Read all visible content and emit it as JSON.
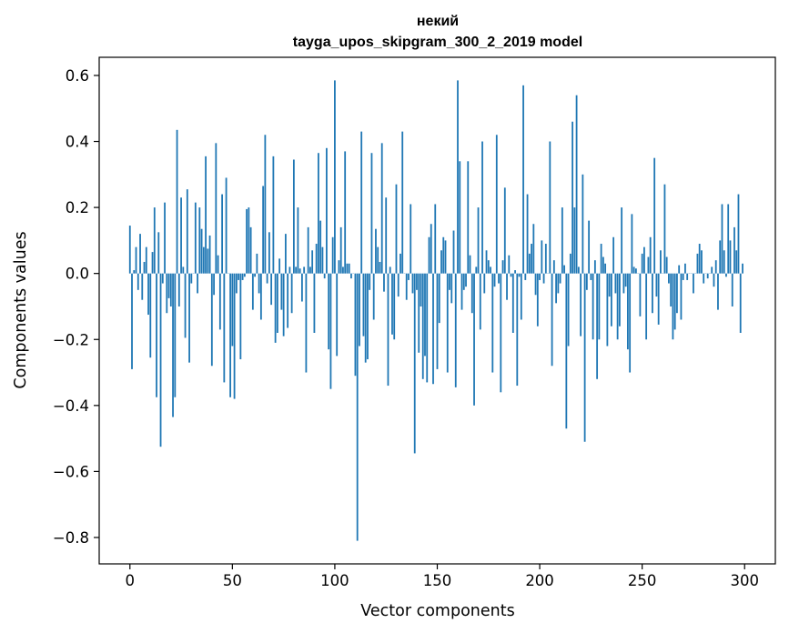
{
  "chart_data": {
    "type": "bar",
    "title_line1": "некий",
    "title_line2": "tayga_upos_skipgram_300_2_2019 model",
    "xlabel": "Vector components",
    "ylabel": "Components values",
    "xlim": [
      -15,
      315
    ],
    "ylim": [
      -0.88,
      0.655
    ],
    "xticks": [
      0,
      50,
      100,
      150,
      200,
      250,
      300
    ],
    "xtick_labels": [
      "0",
      "50",
      "100",
      "150",
      "200",
      "250",
      "300"
    ],
    "yticks": [
      0.6,
      0.4,
      0.2,
      0.0,
      -0.2,
      -0.4,
      -0.6,
      -0.8
    ],
    "ytick_labels": [
      "0.6",
      "0.4",
      "0.2",
      "0.0",
      "−0.2",
      "−0.4",
      "−0.6",
      "−0.8"
    ],
    "bar_color": "#1f77b4",
    "values": [
      0.145,
      -0.29,
      0.01,
      0.08,
      -0.05,
      0.12,
      -0.08,
      0.035,
      0.08,
      -0.125,
      -0.255,
      0.065,
      0.2,
      -0.375,
      0.125,
      -0.525,
      -0.03,
      0.215,
      -0.12,
      -0.075,
      -0.1,
      -0.435,
      -0.375,
      0.435,
      -0.1,
      0.23,
      0.02,
      -0.195,
      0.255,
      -0.27,
      -0.03,
      0.0,
      0.215,
      -0.06,
      0.2,
      0.135,
      0.08,
      0.355,
      0.075,
      0.115,
      -0.28,
      -0.065,
      0.395,
      0.055,
      -0.17,
      0.24,
      -0.33,
      0.29,
      0.0,
      -0.375,
      -0.22,
      -0.38,
      -0.06,
      -0.02,
      -0.26,
      -0.02,
      -0.01,
      0.195,
      0.2,
      0.14,
      -0.11,
      -0.01,
      0.06,
      -0.06,
      -0.14,
      0.265,
      0.42,
      -0.03,
      0.125,
      -0.095,
      0.355,
      -0.21,
      -0.18,
      0.045,
      -0.11,
      -0.19,
      0.12,
      -0.165,
      0.02,
      -0.12,
      0.345,
      0.02,
      0.2,
      0.015,
      -0.085,
      0.02,
      -0.3,
      0.14,
      0.02,
      0.07,
      -0.18,
      0.09,
      0.365,
      0.16,
      0.08,
      -0.015,
      0.38,
      -0.23,
      -0.35,
      0.11,
      0.585,
      -0.25,
      0.04,
      0.14,
      0.02,
      0.37,
      0.03,
      0.03,
      -0.015,
      0.0,
      -0.31,
      -0.81,
      -0.22,
      0.43,
      -0.19,
      -0.27,
      -0.26,
      -0.05,
      0.365,
      -0.14,
      0.135,
      0.08,
      0.035,
      0.395,
      -0.055,
      0.23,
      -0.34,
      0.02,
      -0.185,
      -0.2,
      0.27,
      -0.07,
      0.06,
      0.43,
      0.0,
      -0.08,
      -0.02,
      0.21,
      -0.06,
      -0.545,
      -0.05,
      -0.24,
      -0.1,
      -0.32,
      -0.25,
      -0.33,
      0.11,
      0.15,
      -0.335,
      0.21,
      -0.29,
      -0.15,
      0.07,
      0.11,
      0.1,
      -0.3,
      -0.05,
      -0.09,
      0.13,
      -0.345,
      0.585,
      0.34,
      -0.11,
      -0.05,
      -0.04,
      0.34,
      0.055,
      -0.12,
      -0.4,
      0.02,
      0.2,
      -0.17,
      0.4,
      -0.06,
      0.07,
      0.04,
      0.02,
      -0.3,
      -0.04,
      0.42,
      -0.03,
      -0.36,
      0.04,
      0.26,
      -0.08,
      0.055,
      -0.01,
      -0.18,
      0.01,
      -0.34,
      -0.01,
      -0.14,
      0.57,
      -0.02,
      0.24,
      0.06,
      0.09,
      0.15,
      -0.065,
      -0.16,
      -0.02,
      0.1,
      -0.03,
      0.09,
      0.0,
      0.4,
      -0.28,
      0.04,
      -0.09,
      -0.06,
      -0.03,
      0.2,
      0.025,
      -0.47,
      -0.22,
      0.06,
      0.46,
      0.2,
      0.54,
      0.02,
      -0.19,
      0.3,
      -0.51,
      -0.05,
      0.16,
      -0.02,
      -0.2,
      0.04,
      -0.32,
      -0.2,
      0.09,
      0.05,
      0.03,
      -0.22,
      -0.07,
      -0.16,
      0.11,
      -0.06,
      -0.2,
      -0.16,
      0.2,
      -0.06,
      -0.04,
      -0.23,
      -0.3,
      0.18,
      0.02,
      0.015,
      0.0,
      -0.13,
      0.06,
      0.08,
      -0.2,
      0.05,
      0.11,
      -0.12,
      0.35,
      -0.07,
      -0.155,
      0.07,
      0.0,
      0.27,
      0.05,
      -0.03,
      -0.1,
      -0.2,
      -0.17,
      -0.12,
      0.025,
      -0.14,
      -0.02,
      0.03,
      -0.02,
      0.0,
      0.0,
      -0.06,
      0.0,
      0.06,
      0.09,
      0.07,
      -0.03,
      0.0,
      -0.015,
      0.0,
      0.02,
      -0.04,
      0.04,
      -0.11,
      0.1,
      0.21,
      0.07,
      -0.01,
      0.21,
      0.1,
      -0.1,
      0.14,
      0.07,
      0.24,
      -0.18,
      0.03
    ]
  }
}
